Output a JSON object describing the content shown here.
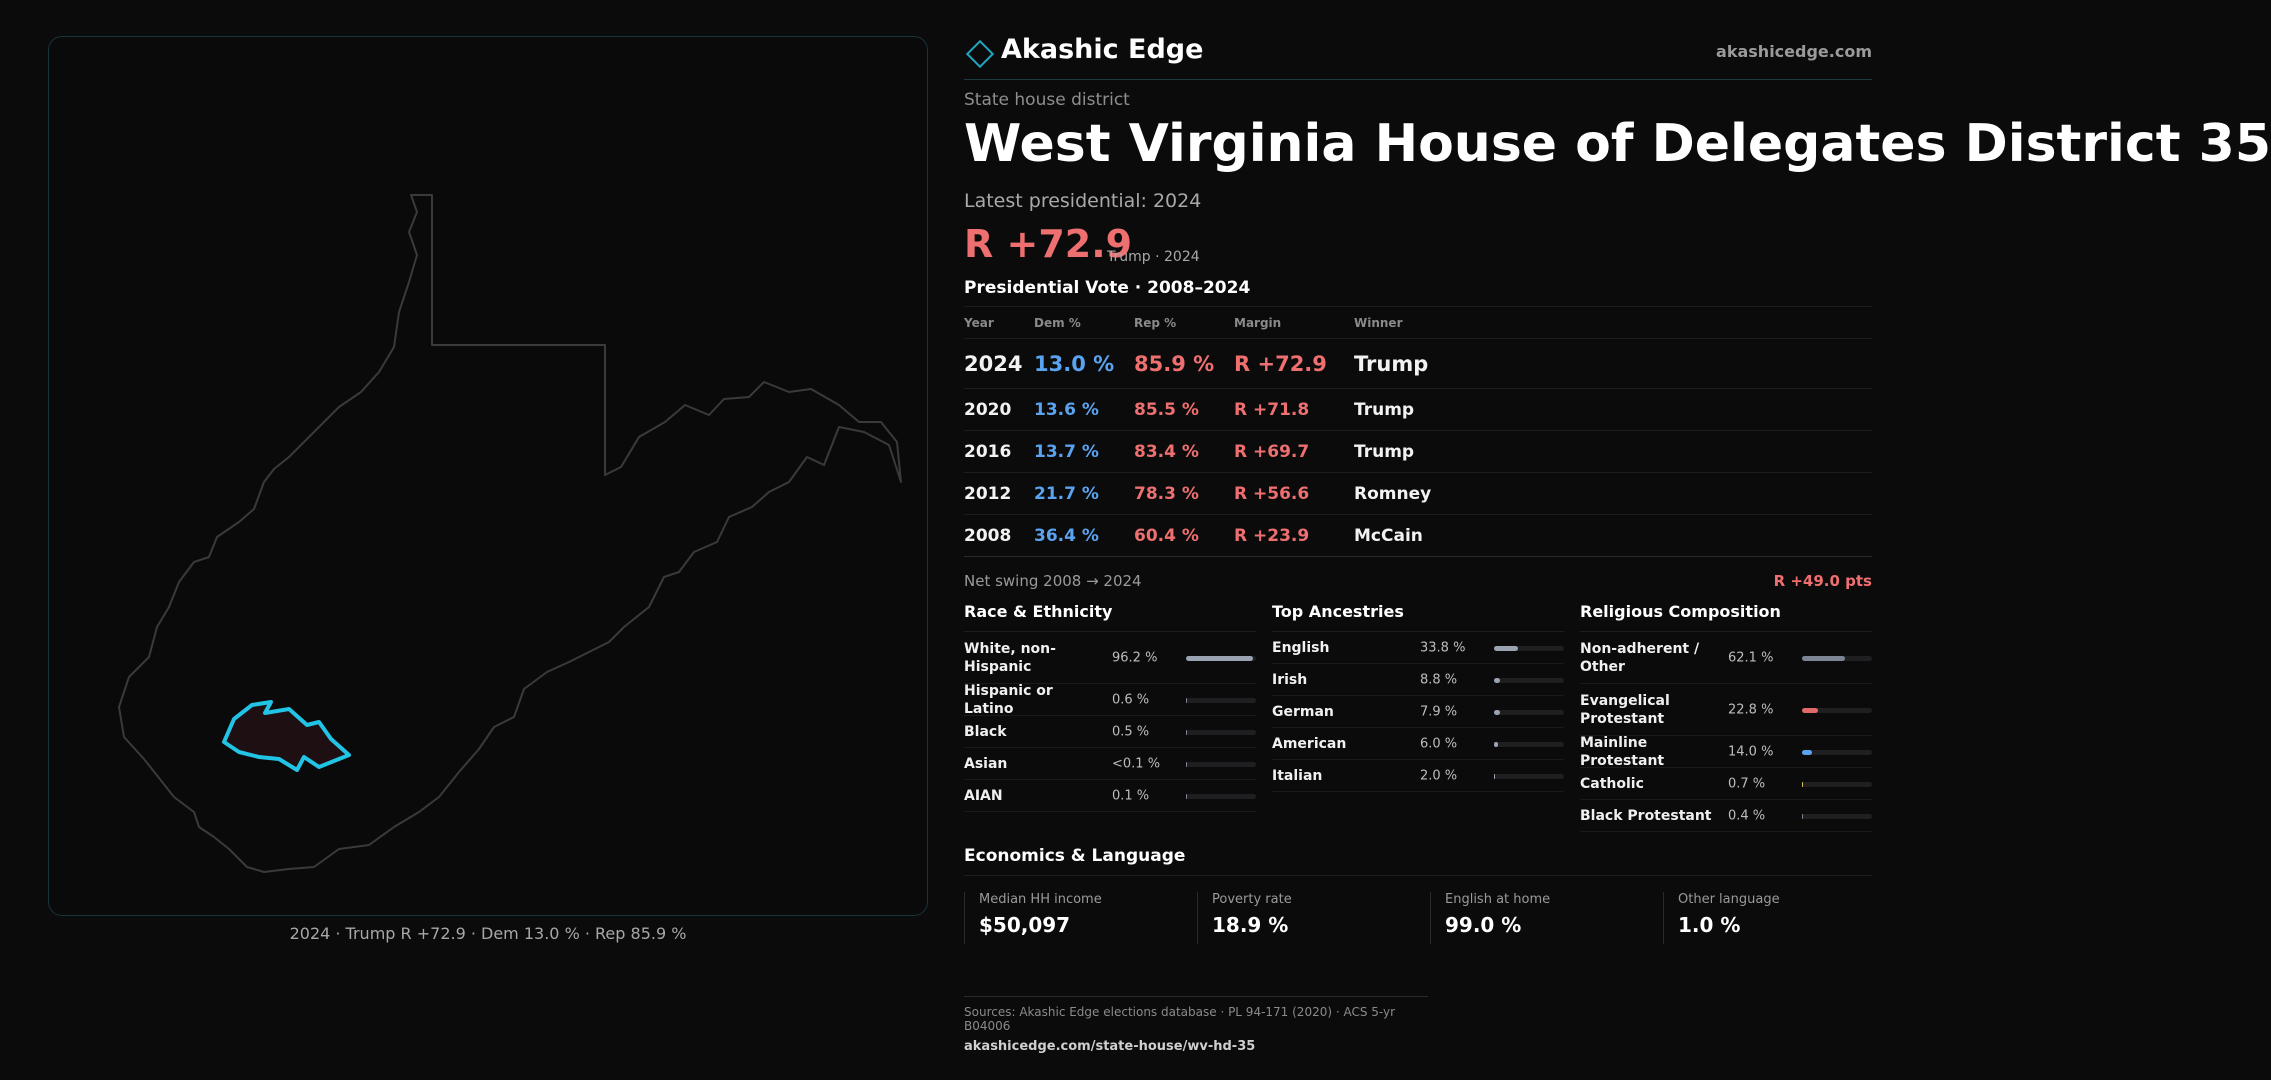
{
  "brand": {
    "name": "Akashic Edge",
    "site": "akashicedge.com"
  },
  "kicker": "State house district",
  "title": "West Virginia House of Delegates District 35",
  "latest_label": "Latest presidential: 2024",
  "headline_margin": "R +72.9",
  "headline_sub": "Trump · 2024",
  "pv_title": "Presidential Vote · 2008–2024",
  "vote_table": {
    "headers": {
      "year": "Year",
      "dem": "Dem %",
      "rep": "Rep %",
      "margin": "Margin",
      "winner": "Winner"
    },
    "rows": [
      {
        "year": "2024",
        "dem": "13.0 %",
        "rep": "85.9 %",
        "margin": "R +72.9",
        "winner": "Trump"
      },
      {
        "year": "2020",
        "dem": "13.6 %",
        "rep": "85.5 %",
        "margin": "R +71.8",
        "winner": "Trump"
      },
      {
        "year": "2016",
        "dem": "13.7 %",
        "rep": "83.4 %",
        "margin": "R +69.7",
        "winner": "Trump"
      },
      {
        "year": "2012",
        "dem": "21.7 %",
        "rep": "78.3 %",
        "margin": "R +56.6",
        "winner": "Romney"
      },
      {
        "year": "2008",
        "dem": "36.4 %",
        "rep": "60.4 %",
        "margin": "R +23.9",
        "winner": "McCain"
      }
    ]
  },
  "swing": {
    "label": "Net swing 2008 → 2024",
    "value": "R +49.0 pts"
  },
  "race": {
    "title": "Race & Ethnicity",
    "rows": [
      {
        "label": "White, non-Hispanic",
        "value": "96.2 %",
        "fraction": 0.962,
        "color": "#9aa3b2"
      },
      {
        "label": "Hispanic or Latino",
        "value": "0.6 %",
        "fraction": 0.006,
        "color": "#7c8594"
      },
      {
        "label": "Black",
        "value": "0.5 %",
        "fraction": 0.005,
        "color": "#7c8594"
      },
      {
        "label": "Asian",
        "value": "<0.1 %",
        "fraction": 0.001,
        "color": "#7c8594"
      },
      {
        "label": "AIAN",
        "value": "0.1 %",
        "fraction": 0.001,
        "color": "#7c8594"
      }
    ]
  },
  "ancestry": {
    "title": "Top Ancestries",
    "rows": [
      {
        "label": "English",
        "value": "33.8 %",
        "fraction": 0.338,
        "color": "#9aa3b2"
      },
      {
        "label": "Irish",
        "value": "8.8 %",
        "fraction": 0.088,
        "color": "#9aa3b2"
      },
      {
        "label": "German",
        "value": "7.9 %",
        "fraction": 0.079,
        "color": "#9aa3b2"
      },
      {
        "label": "American",
        "value": "6.0 %",
        "fraction": 0.06,
        "color": "#9aa3b2"
      },
      {
        "label": "Italian",
        "value": "2.0 %",
        "fraction": 0.02,
        "color": "#9aa3b2"
      }
    ]
  },
  "religion": {
    "title": "Religious Composition",
    "rows": [
      {
        "label": "Non-adherent / Other",
        "value": "62.1 %",
        "fraction": 0.621,
        "color": "#7c8594"
      },
      {
        "label": "Evangelical Protestant",
        "value": "22.8 %",
        "fraction": 0.228,
        "color": "#e06a6a"
      },
      {
        "label": "Mainline Protestant",
        "value": "14.0 %",
        "fraction": 0.14,
        "color": "#5aa3f0"
      },
      {
        "label": "Catholic",
        "value": "0.7 %",
        "fraction": 0.007,
        "color": "#d6c15a"
      },
      {
        "label": "Black Protestant",
        "value": "0.4 %",
        "fraction": 0.004,
        "color": "#7c8594"
      }
    ]
  },
  "economics": {
    "title": "Economics & Language",
    "items": [
      {
        "label": "Median HH income",
        "value": "$50,097"
      },
      {
        "label": "Poverty rate",
        "value": "18.9 %"
      },
      {
        "label": "English at home",
        "value": "99.0 %"
      },
      {
        "label": "Other language",
        "value": "1.0 %"
      }
    ]
  },
  "map_caption": "2024 · Trump R +72.9 · Dem 13.0 % · Rep 85.9 %",
  "sources": {
    "line1": "Sources: Akashic Edge elections database · PL 94-171 (2020) · ACS 5-yr B04006",
    "line2": "akashicedge.com/state-house/wv-hd-35"
  },
  "colors": {
    "accent": "#1ea8c0",
    "district_outline": "#22c4e6",
    "rep": "#ee6f6f",
    "dem": "#5aa3f0"
  }
}
